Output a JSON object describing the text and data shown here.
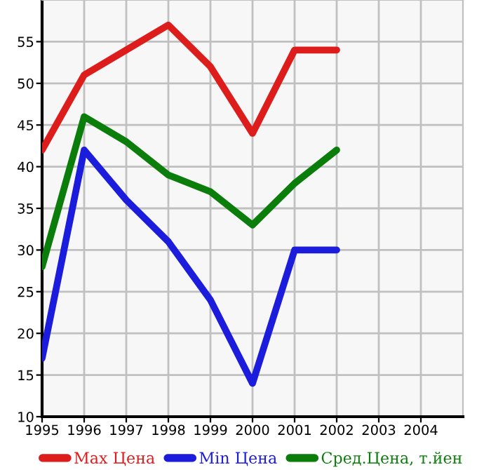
{
  "chart_data": {
    "type": "line",
    "x": [
      1995,
      1996,
      1997,
      1998,
      1999,
      2000,
      2001,
      2002
    ],
    "series": [
      {
        "name": "Max Цена",
        "color": "#dd1c1c",
        "values": [
          42,
          51,
          54,
          57,
          52,
          44,
          54,
          54
        ]
      },
      {
        "name": "Min Цена",
        "color": "#1c1cdd",
        "values": [
          17,
          42,
          36,
          31,
          24,
          14,
          30,
          30
        ]
      },
      {
        "name": "Сред.Цена, т.йен",
        "color": "#0a7d0a",
        "values": [
          28,
          46,
          43,
          39,
          37,
          33,
          38,
          42
        ]
      }
    ],
    "xlim": [
      1995,
      2005
    ],
    "xticks": [
      1995,
      1996,
      1997,
      1998,
      1999,
      2000,
      2001,
      2002,
      2003,
      2004
    ],
    "ylim": [
      10,
      60
    ],
    "yticks": [
      10,
      15,
      20,
      25,
      30,
      35,
      40,
      45,
      50,
      55
    ],
    "grid": true,
    "legend": "bottom",
    "marker": "none",
    "line_style": "solid"
  }
}
